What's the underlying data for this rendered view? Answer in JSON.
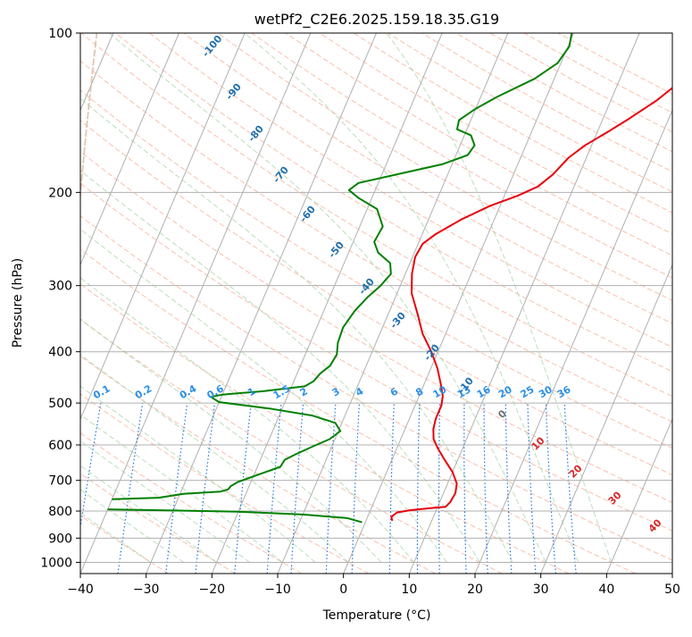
{
  "chart_data": {
    "type": "line",
    "title": "wetPf2_C2E6.2025.159.18.35.G19",
    "xlabel": "Temperature (°C)",
    "ylabel": "Pressure (hPa)",
    "xlim": [
      -40,
      50
    ],
    "ylim": [
      1050,
      100
    ],
    "y_scale": "log",
    "x_ticks": [
      -40,
      -30,
      -20,
      -10,
      0,
      10,
      20,
      30,
      40,
      50
    ],
    "y_ticks": [
      100,
      200,
      300,
      400,
      500,
      600,
      700,
      800,
      900,
      1000
    ],
    "grid": true,
    "colors": {
      "temperature": "#e8000b",
      "dewpoint": "#008000",
      "isotherm": "#b0b0b0",
      "dry_adiabat": "#f6a58a",
      "moist_adiabat": "#9fd09f",
      "mixing_ratio": "#1f77e4",
      "mixing_label": "#2b8fe8",
      "wetbulb_label": "#1f6fad",
      "wetbulb_curve": "#d8b89a",
      "dry_label": "#d62728",
      "moist_label": "#707070"
    },
    "series": [
      {
        "key": "temperature",
        "points": [
          [
            4,
            835
          ],
          [
            3.6,
            820
          ],
          [
            4.2,
            805
          ],
          [
            6,
            797
          ],
          [
            9,
            790
          ],
          [
            11.2,
            785
          ],
          [
            11.6,
            770
          ],
          [
            11.8,
            740
          ],
          [
            11.4,
            710
          ],
          [
            10,
            675
          ],
          [
            8,
            640
          ],
          [
            6.3,
            610
          ],
          [
            5,
            585
          ],
          [
            4.3,
            560
          ],
          [
            4,
            535
          ],
          [
            4,
            505
          ],
          [
            3.6,
            485
          ],
          [
            2.5,
            460
          ],
          [
            1,
            430
          ],
          [
            -1,
            400
          ],
          [
            -3.5,
            370
          ],
          [
            -5.5,
            340
          ],
          [
            -7.8,
            310
          ],
          [
            -9,
            285
          ],
          [
            -9.6,
            265
          ],
          [
            -9.3,
            250
          ],
          [
            -8,
            240
          ],
          [
            -5,
            225
          ],
          [
            -1.5,
            212
          ],
          [
            2,
            203
          ],
          [
            4.5,
            195
          ],
          [
            6,
            185
          ],
          [
            7.3,
            172
          ],
          [
            9,
            163
          ],
          [
            11.5,
            154
          ],
          [
            14,
            145
          ],
          [
            17,
            134
          ],
          [
            19,
            125
          ],
          [
            21.5,
            118
          ],
          [
            25.5,
            111
          ],
          [
            26.8,
            105
          ],
          [
            28,
            100
          ]
        ]
      },
      {
        "key": "dewpoint",
        "points": [
          [
            -0.5,
            840
          ],
          [
            -3,
            825
          ],
          [
            -10,
            812
          ],
          [
            -20,
            802
          ],
          [
            -32,
            797
          ],
          [
            -40,
            794
          ]
        ]
      },
      {
        "key": "dewpoint",
        "points": [
          [
            -40,
            760
          ],
          [
            -33,
            755
          ],
          [
            -29.5,
            742
          ],
          [
            -24,
            735
          ],
          [
            -23,
            728
          ],
          [
            -22.8,
            718
          ],
          [
            -22,
            705
          ],
          [
            -19,
            680
          ],
          [
            -16.5,
            660
          ],
          [
            -16.3,
            640
          ],
          [
            -15,
            625
          ],
          [
            -13,
            605
          ],
          [
            -10.8,
            585
          ],
          [
            -9.7,
            565
          ],
          [
            -11,
            545
          ],
          [
            -15,
            528
          ],
          [
            -22,
            512
          ],
          [
            -30,
            498
          ],
          [
            -31.6,
            487
          ],
          [
            -30,
            482
          ],
          [
            -24,
            475
          ],
          [
            -18,
            465
          ],
          [
            -17,
            455
          ],
          [
            -16.5,
            440
          ],
          [
            -15.5,
            425
          ],
          [
            -15.2,
            405
          ],
          [
            -15.8,
            385
          ],
          [
            -16,
            360
          ],
          [
            -15.3,
            335
          ],
          [
            -14.2,
            315
          ],
          [
            -13,
            300
          ],
          [
            -12.2,
            285
          ],
          [
            -13,
            272
          ],
          [
            -15.5,
            260
          ],
          [
            -16.8,
            248
          ],
          [
            -16.5,
            232
          ],
          [
            -18.5,
            215
          ],
          [
            -22,
            205
          ],
          [
            -24,
            198
          ],
          [
            -23,
            192
          ],
          [
            -17,
            184
          ],
          [
            -11.5,
            177
          ],
          [
            -8.2,
            170
          ],
          [
            -7.8,
            163
          ],
          [
            -9,
            156
          ],
          [
            -11.5,
            152
          ],
          [
            -11.8,
            146
          ],
          [
            -10,
            139
          ],
          [
            -7.5,
            132
          ],
          [
            -3,
            122
          ],
          [
            -0.5,
            114
          ],
          [
            0.2,
            106
          ],
          [
            -0.3,
            100
          ]
        ]
      }
    ],
    "mixing_ratio_labels": [
      "0.1",
      "0.2",
      "0.4",
      "0.6",
      "1",
      "1.5",
      "2",
      "3",
      "4",
      "6",
      "8",
      "10",
      "13",
      "16",
      "20",
      "25",
      "30",
      "36"
    ],
    "wetbulb_labels": [
      "-100",
      "-90",
      "-80",
      "-70",
      "-60",
      "-50",
      "-40",
      "-30",
      "-20",
      "-10"
    ],
    "dry_adiabat_labels": [
      "10",
      "20",
      "30",
      "40"
    ],
    "moist_adiabat_labels": [
      "0"
    ]
  }
}
